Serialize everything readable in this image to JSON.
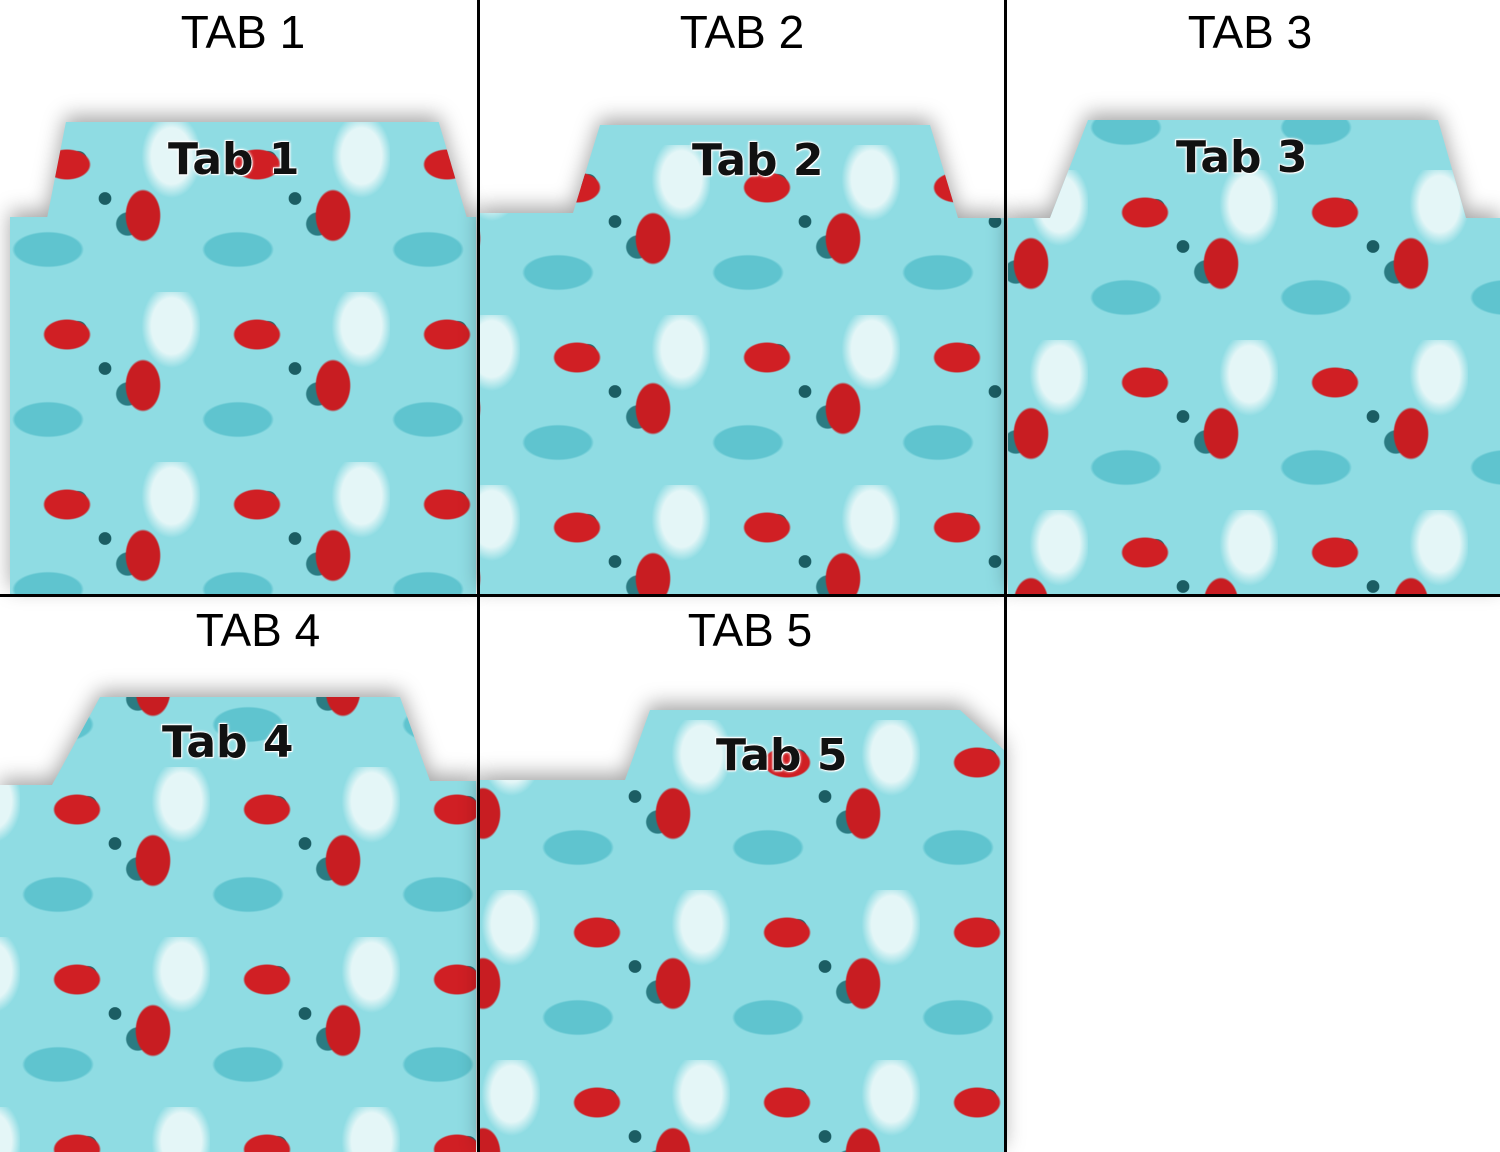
{
  "cells": [
    {
      "header": "TAB 1",
      "tab_label": "Tab 1"
    },
    {
      "header": "TAB 2",
      "tab_label": "Tab 2"
    },
    {
      "header": "TAB 3",
      "tab_label": "Tab 3"
    },
    {
      "header": "TAB 4",
      "tab_label": "Tab 4"
    },
    {
      "header": "TAB 5",
      "tab_label": "Tab 5"
    }
  ],
  "colors": {
    "background": "#8fdce3",
    "red": "#d01f24",
    "dark_teal": "#1e6a70",
    "grid": "#000000"
  }
}
